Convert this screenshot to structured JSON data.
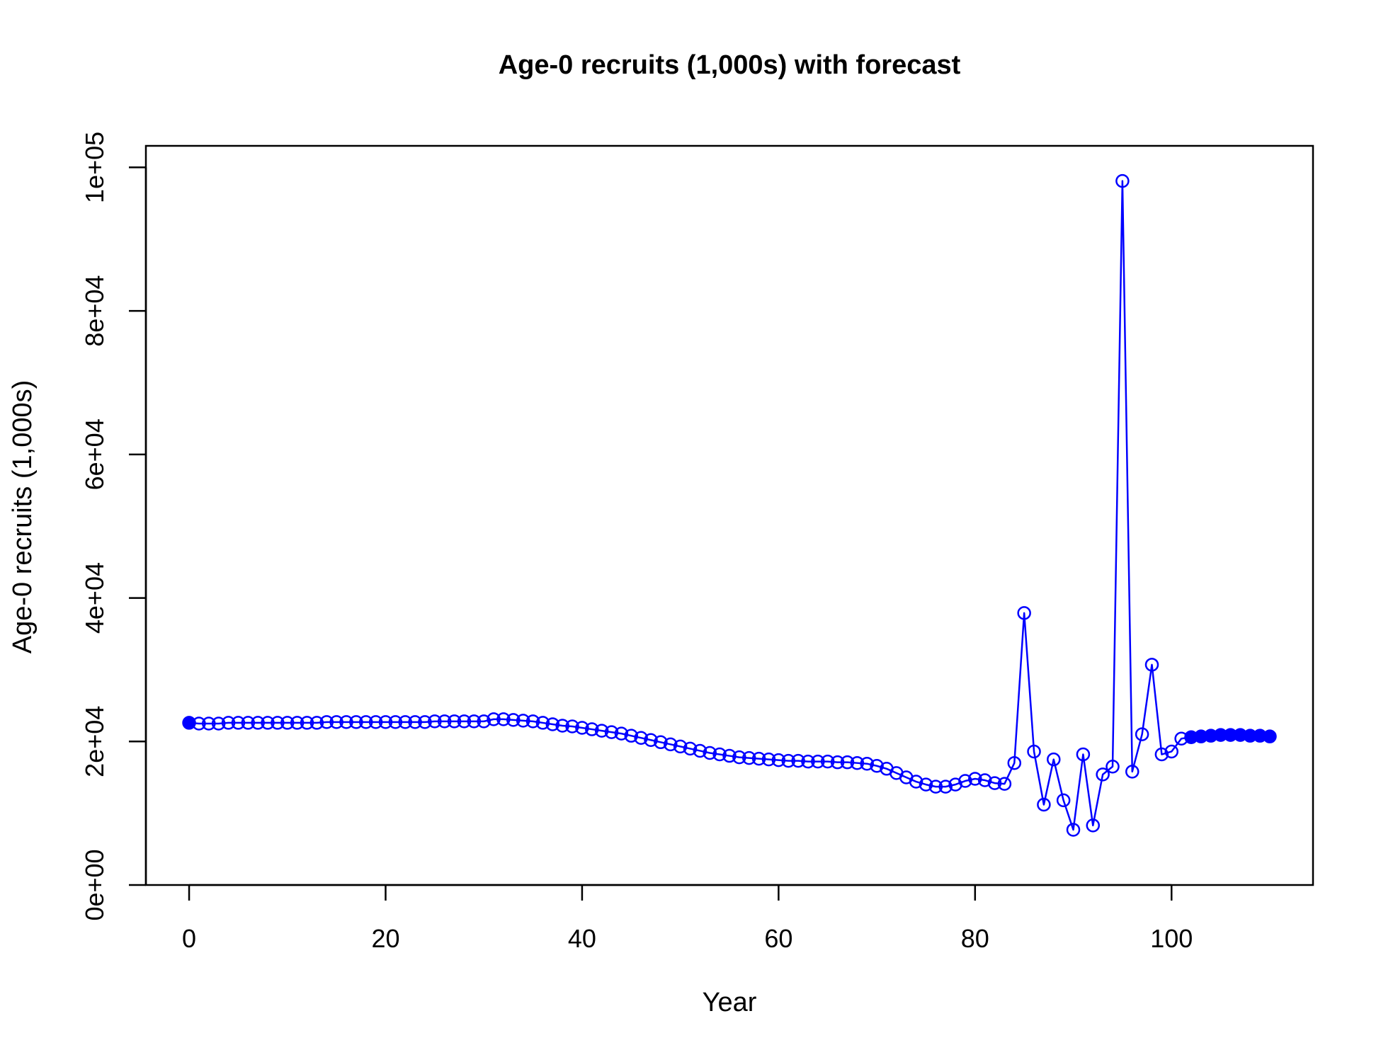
{
  "chart_data": {
    "type": "line",
    "title": "Age-0 recruits (1,000s) with forecast",
    "xlabel": "Year",
    "ylabel": "Age-0 recruits (1,000s)",
    "xlim": [
      -4.4,
      114.4
    ],
    "ylim": [
      0,
      103000
    ],
    "x_ticks": [
      {
        "value": 0,
        "label": "0"
      },
      {
        "value": 20,
        "label": "20"
      },
      {
        "value": 40,
        "label": "40"
      },
      {
        "value": 60,
        "label": "60"
      },
      {
        "value": 80,
        "label": "80"
      },
      {
        "value": 100,
        "label": "100"
      }
    ],
    "y_ticks": [
      {
        "value": 0,
        "label": "0e+00"
      },
      {
        "value": 20000,
        "label": "2e+04"
      },
      {
        "value": 40000,
        "label": "4e+04"
      },
      {
        "value": 60000,
        "label": "6e+04"
      },
      {
        "value": 80000,
        "label": "8e+04"
      },
      {
        "value": 100000,
        "label": "1e+05"
      }
    ],
    "grid": false,
    "legend": "none",
    "line_color": "#0000FF",
    "series": [
      {
        "marker": "open-circle",
        "x": [
          1,
          2,
          3,
          4,
          5,
          6,
          7,
          8,
          9,
          10,
          11,
          12,
          13,
          14,
          15,
          16,
          17,
          18,
          19,
          20,
          21,
          22,
          23,
          24,
          25,
          26,
          27,
          28,
          29,
          30,
          31,
          32,
          33,
          34,
          35,
          36,
          37,
          38,
          39,
          40,
          41,
          42,
          43,
          44,
          45,
          46,
          47,
          48,
          49,
          50,
          51,
          52,
          53,
          54,
          55,
          56,
          57,
          58,
          59,
          60,
          61,
          62,
          63,
          64,
          65,
          66,
          67,
          68,
          69,
          70,
          71,
          72,
          73,
          74,
          75,
          76,
          77,
          78,
          79,
          80,
          81,
          82,
          83,
          84,
          85,
          86,
          87,
          88,
          89,
          90,
          91,
          92,
          93,
          94,
          95,
          96,
          97,
          98,
          99,
          100,
          101
        ],
        "y": [
          22500,
          22500,
          22500,
          22600,
          22600,
          22600,
          22600,
          22600,
          22600,
          22600,
          22600,
          22600,
          22600,
          22700,
          22700,
          22700,
          22700,
          22700,
          22700,
          22700,
          22700,
          22700,
          22700,
          22700,
          22800,
          22800,
          22800,
          22800,
          22800,
          22800,
          23100,
          23100,
          23000,
          22900,
          22800,
          22600,
          22400,
          22200,
          22100,
          21900,
          21700,
          21500,
          21300,
          21100,
          20800,
          20500,
          20200,
          19900,
          19600,
          19300,
          19000,
          18700,
          18400,
          18200,
          18000,
          17800,
          17700,
          17600,
          17500,
          17400,
          17300,
          17300,
          17200,
          17200,
          17200,
          17100,
          17100,
          17000,
          16900,
          16600,
          16200,
          15600,
          15000,
          14400,
          14000,
          13700,
          13700,
          14000,
          14500,
          14800,
          14600,
          14200,
          14100,
          17000,
          37900,
          18600,
          11200,
          17500,
          11800,
          7700,
          18200,
          8300,
          15400,
          16500,
          98100,
          15800,
          21000,
          30700,
          18200,
          18600,
          20400
        ]
      },
      {
        "marker": "filled-circle",
        "x": [
          0,
          102,
          103,
          104,
          105,
          106,
          107,
          108,
          109,
          110
        ],
        "y": [
          22600,
          20600,
          20700,
          20800,
          20900,
          20900,
          20900,
          20800,
          20800,
          20700
        ]
      }
    ]
  }
}
